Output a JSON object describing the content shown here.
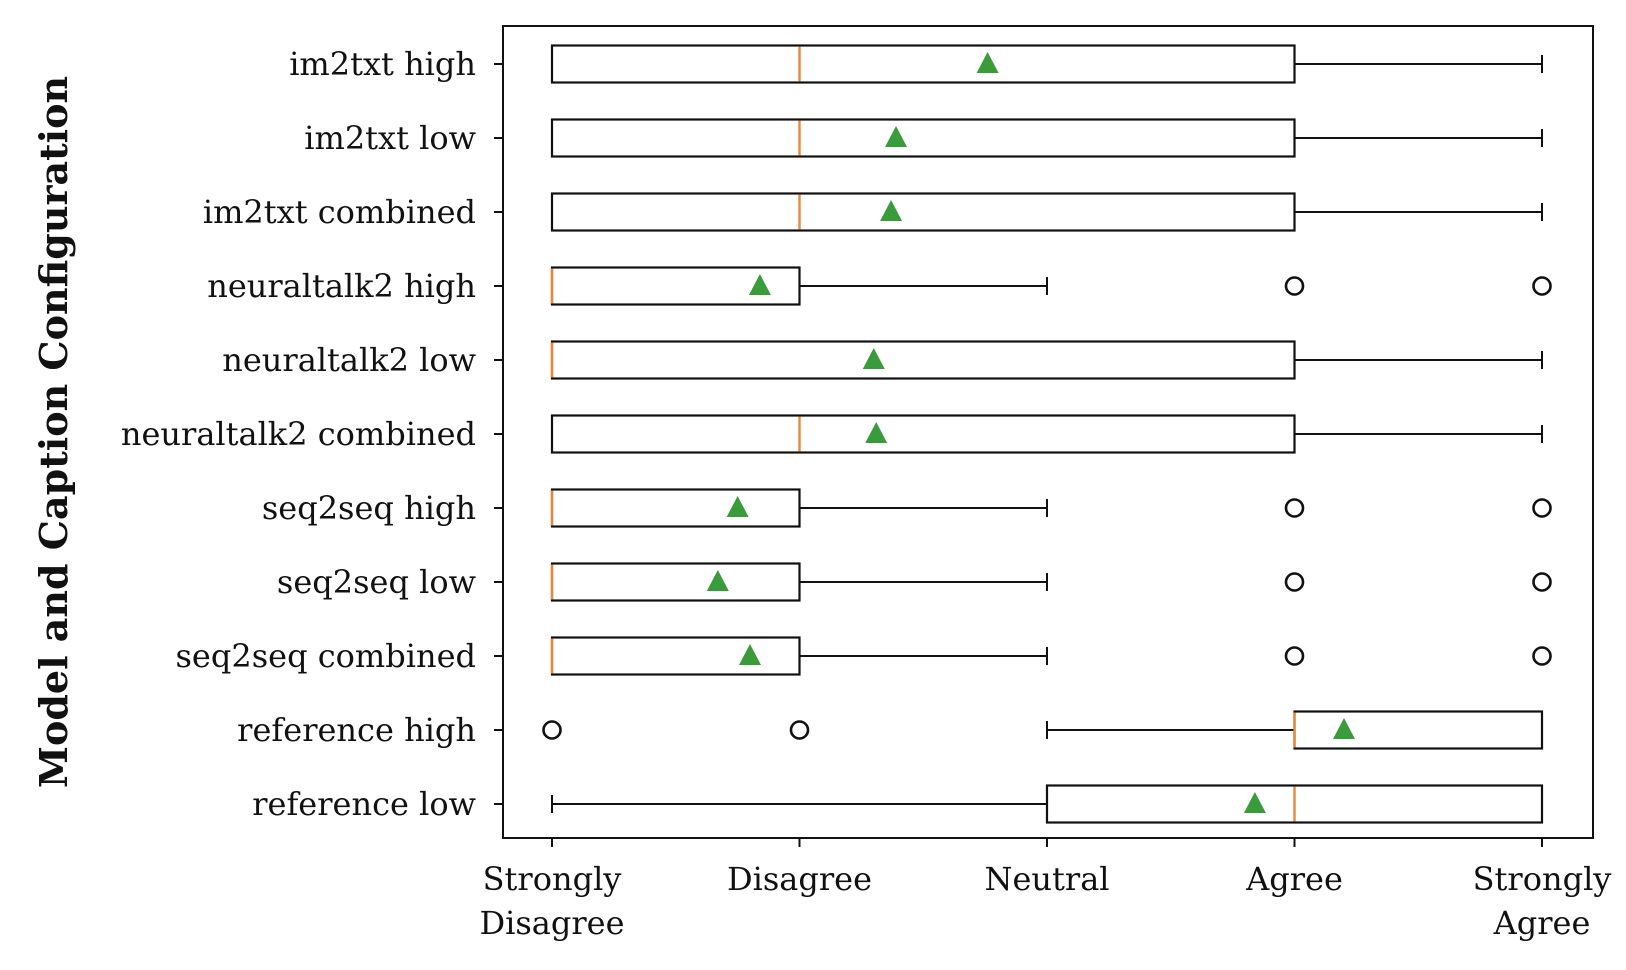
{
  "chart_data": {
    "type": "boxplot",
    "orientation": "horizontal",
    "title": "",
    "xlabel": "",
    "ylabel": "Model and Caption Configuration",
    "x_scale": {
      "min": 1,
      "max": 5
    },
    "x_tick_values": [
      1,
      2,
      3,
      4,
      5
    ],
    "x_tick_labels": [
      [
        "Strongly",
        "Disagree"
      ],
      [
        "Disagree"
      ],
      [
        "Neutral"
      ],
      [
        "Agree"
      ],
      [
        "Strongly",
        "Agree"
      ]
    ],
    "grid": false,
    "colors": {
      "box_edge": "#111111",
      "median": "#e8883a",
      "mean_marker": "#3a9b3a",
      "outlier_edge": "#111111",
      "axes": "#111111"
    },
    "series": [
      {
        "name": "im2txt high",
        "whisker_low": 1,
        "q1": 1,
        "median": 2,
        "q3": 4,
        "whisker_high": 5,
        "mean": 2.76,
        "outliers": []
      },
      {
        "name": "im2txt low",
        "whisker_low": 1,
        "q1": 1,
        "median": 2,
        "q3": 4,
        "whisker_high": 5,
        "mean": 2.39,
        "outliers": []
      },
      {
        "name": "im2txt combined",
        "whisker_low": 1,
        "q1": 1,
        "median": 2,
        "q3": 4,
        "whisker_high": 5,
        "mean": 2.37,
        "outliers": []
      },
      {
        "name": "neuraltalk2 high",
        "whisker_low": 1,
        "q1": 1,
        "median": 1,
        "q3": 2,
        "whisker_high": 3,
        "mean": 1.84,
        "outliers": [
          4,
          5
        ]
      },
      {
        "name": "neuraltalk2 low",
        "whisker_low": 1,
        "q1": 1,
        "median": 1,
        "q3": 4,
        "whisker_high": 5,
        "mean": 2.3,
        "outliers": []
      },
      {
        "name": "neuraltalk2 combined",
        "whisker_low": 1,
        "q1": 1,
        "median": 2,
        "q3": 4,
        "whisker_high": 5,
        "mean": 2.31,
        "outliers": []
      },
      {
        "name": "seq2seq high",
        "whisker_low": 1,
        "q1": 1,
        "median": 1,
        "q3": 2,
        "whisker_high": 3,
        "mean": 1.75,
        "outliers": [
          4,
          5
        ]
      },
      {
        "name": "seq2seq low",
        "whisker_low": 1,
        "q1": 1,
        "median": 1,
        "q3": 2,
        "whisker_high": 3,
        "mean": 1.67,
        "outliers": [
          4,
          5
        ]
      },
      {
        "name": "seq2seq combined",
        "whisker_low": 1,
        "q1": 1,
        "median": 1,
        "q3": 2,
        "whisker_high": 3,
        "mean": 1.8,
        "outliers": [
          4,
          5
        ]
      },
      {
        "name": "reference high",
        "whisker_low": 3,
        "q1": 4,
        "median": 4,
        "q3": 5,
        "whisker_high": 5,
        "mean": 4.2,
        "outliers": [
          1,
          2
        ]
      },
      {
        "name": "reference low",
        "whisker_low": 1,
        "q1": 3,
        "median": 4,
        "q3": 5,
        "whisker_high": 5,
        "mean": 3.84,
        "outliers": []
      }
    ]
  }
}
